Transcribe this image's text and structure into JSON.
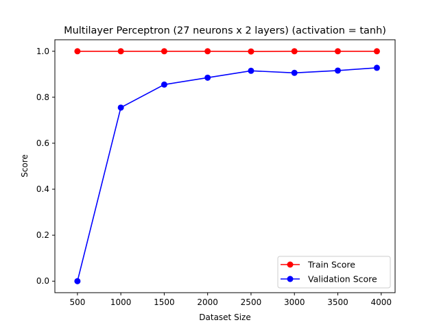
{
  "chart_data": {
    "type": "line",
    "title": "Multilayer Perceptron (27 neurons x 2 layers) (activation = tanh)",
    "xlabel": "Dataset Size",
    "ylabel": "Score",
    "x": [
      500,
      1000,
      1500,
      2000,
      2500,
      3000,
      3500,
      3950
    ],
    "xlim": [
      240,
      4160
    ],
    "ylim": [
      -0.05,
      1.05
    ],
    "xticks": [
      500,
      1000,
      1500,
      2000,
      2500,
      3000,
      3500,
      4000
    ],
    "yticks": [
      0.0,
      0.2,
      0.4,
      0.6,
      0.8,
      1.0
    ],
    "xtick_labels": [
      "500",
      "1000",
      "1500",
      "2000",
      "2500",
      "3000",
      "3500",
      "4000"
    ],
    "ytick_labels": [
      "0.0",
      "0.2",
      "0.4",
      "0.6",
      "0.8",
      "1.0"
    ],
    "grid": false,
    "legend_position": "bottom-right",
    "series": [
      {
        "name": "Train Score",
        "color": "#ff0000",
        "values": [
          1.0,
          1.0,
          1.0,
          1.0,
          0.999,
          1.0,
          1.0,
          1.0
        ]
      },
      {
        "name": "Validation Score",
        "color": "#0000ff",
        "values": [
          0.0,
          0.755,
          0.855,
          0.885,
          0.915,
          0.906,
          0.916,
          0.928
        ]
      }
    ]
  }
}
